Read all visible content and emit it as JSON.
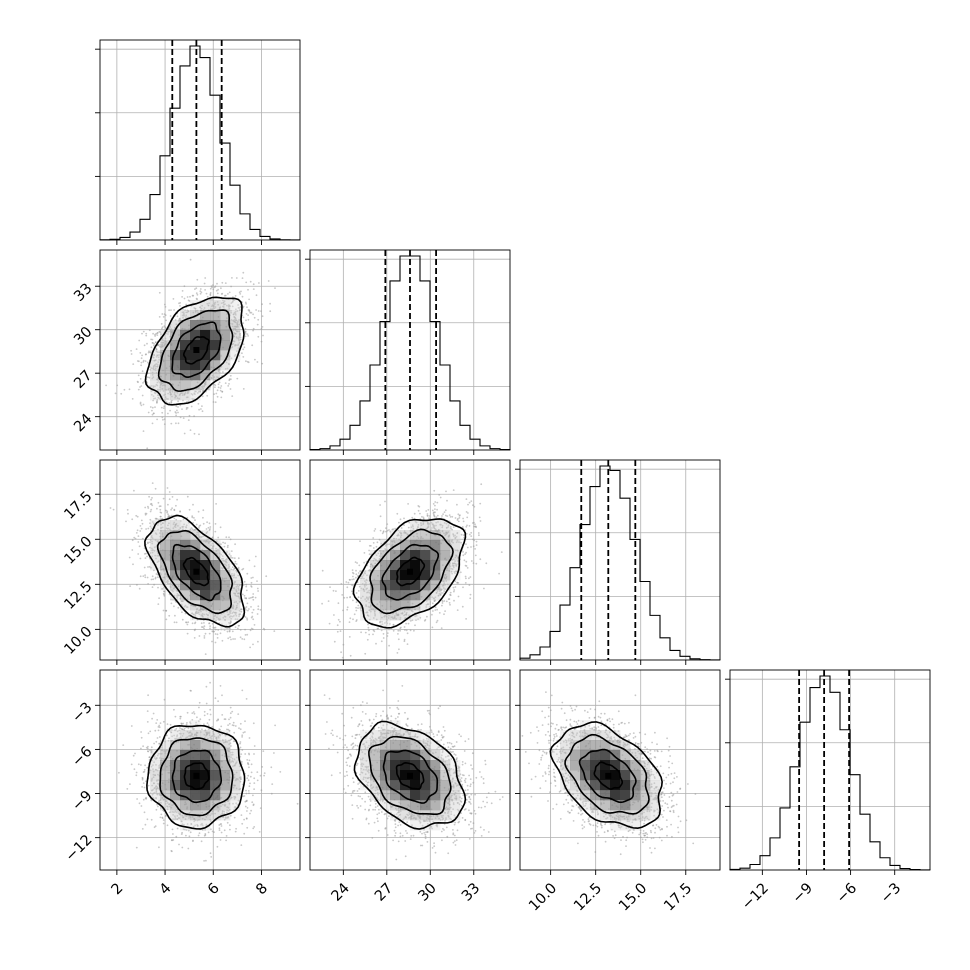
{
  "chart_data": {
    "type": "corner",
    "parameters": [
      {
        "mean": 5.3,
        "std": 1.0,
        "q16": 4.3,
        "q50": 5.3,
        "q84": 6.35,
        "range": [
          1.3,
          9.6
        ],
        "ticks": [
          "2",
          "4",
          "6",
          "8"
        ],
        "tick_values": [
          2,
          4,
          6,
          8
        ]
      },
      {
        "mean": 28.6,
        "std": 1.85,
        "q16": 26.9,
        "q50": 28.6,
        "q84": 30.4,
        "range": [
          21.7,
          35.5
        ],
        "ticks": [
          "24",
          "27",
          "30",
          "33"
        ],
        "tick_values": [
          24,
          27,
          30,
          33
        ]
      },
      {
        "mean": 13.2,
        "std": 1.5,
        "q16": 11.7,
        "q50": 13.2,
        "q84": 14.7,
        "range": [
          8.3,
          19.4
        ],
        "ticks": [
          "10.0",
          "12.5",
          "15.0",
          "17.5"
        ],
        "tick_values": [
          10.0,
          12.5,
          15.0,
          17.5
        ]
      },
      {
        "mean": -7.8,
        "std": 1.75,
        "q16": -9.5,
        "q50": -7.8,
        "q84": -6.1,
        "range": [
          -14.2,
          -0.6
        ],
        "ticks": [
          "−12",
          "−9",
          "−6",
          "−3"
        ],
        "tick_values": [
          -12,
          -9,
          -6,
          -3
        ]
      }
    ],
    "correlations": [
      {
        "pair": [
          1,
          0
        ],
        "rho": 0.45
      },
      {
        "pair": [
          2,
          0
        ],
        "rho": -0.55
      },
      {
        "pair": [
          2,
          1
        ],
        "rho": 0.45
      },
      {
        "pair": [
          3,
          0
        ],
        "rho": 0.0
      },
      {
        "pair": [
          3,
          1
        ],
        "rho": -0.35
      },
      {
        "pair": [
          3,
          2
        ],
        "rho": -0.4
      }
    ],
    "histogram_bins": 20,
    "contour_levels_sigma": [
      0.5,
      1.0,
      1.5,
      2.0
    ],
    "grid": true,
    "colors": {
      "points": "#9a9a9a",
      "density": "#000000",
      "lines": "#000000",
      "grid": "#b0b0b0"
    }
  }
}
